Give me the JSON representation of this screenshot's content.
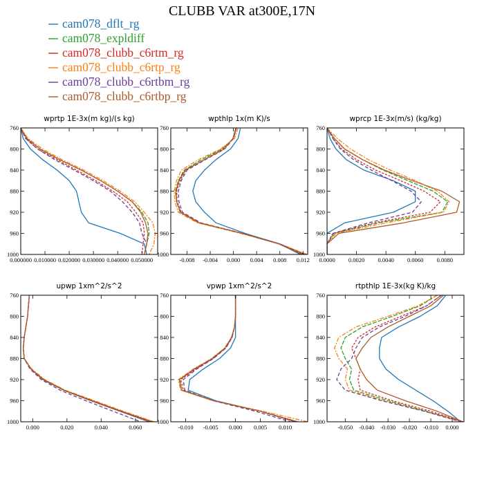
{
  "figure": {
    "title": "CLUBB VAR at300E,17N",
    "legend": [
      {
        "label": "cam078_dflt_rg",
        "color": "#1f77b4"
      },
      {
        "label": "cam078_expldiff",
        "color": "#2ca02c"
      },
      {
        "label": "cam078_clubb_c6rtm_rg",
        "color": "#d62728"
      },
      {
        "label": "cam078_clubb_c6rtp_rg",
        "color": "#ff7f0e"
      },
      {
        "label": "cam078_clubb_c6rtbm_rg",
        "color": "#6a3d9a"
      },
      {
        "label": "cam078_clubb_c6rtbp_rg",
        "color": "#b05a28"
      }
    ]
  },
  "chart_data": [
    {
      "type": "line",
      "title": "wprtp 1E-3x(m kg)/(s kg)",
      "xlim": [
        0.0,
        0.0565
      ],
      "ylim": [
        760,
        1000
      ],
      "y_inverted": true,
      "xticks": [
        0.0,
        0.01,
        0.02,
        0.03,
        0.04,
        0.05
      ],
      "xtick_labels": [
        "0.000000",
        "0.010000",
        "0.020000",
        "0.030000",
        "0.040000",
        "0.050000"
      ],
      "yticks": [
        760,
        800,
        840,
        880,
        920,
        960,
        1000
      ],
      "y": [
        760,
        780,
        800,
        820,
        840,
        860,
        880,
        900,
        920,
        940,
        960,
        980,
        1000
      ],
      "series": [
        {
          "name": "cam078_dflt_rg",
          "values": [
            0.0,
            0.001,
            0.004,
            0.009,
            0.015,
            0.02,
            0.023,
            0.024,
            0.025,
            0.028,
            0.041,
            0.051,
            0.052
          ]
        },
        {
          "name": "cam078_expldiff",
          "values": [
            0.0,
            0.0025,
            0.008,
            0.016,
            0.025,
            0.033,
            0.04,
            0.046,
            0.05,
            0.0525,
            0.053,
            0.052,
            0.051
          ]
        },
        {
          "name": "cam078_clubb_c6rtm_rg",
          "values": [
            0.0,
            0.002,
            0.007,
            0.015,
            0.023,
            0.031,
            0.038,
            0.044,
            0.0475,
            0.0505,
            0.051,
            0.0505,
            0.05
          ]
        },
        {
          "name": "cam078_clubb_c6rtp_rg",
          "values": [
            0.0,
            0.003,
            0.009,
            0.017,
            0.026,
            0.034,
            0.041,
            0.047,
            0.051,
            0.0545,
            0.0555,
            0.055,
            0.053
          ]
        },
        {
          "name": "cam078_clubb_c6rtbm_rg",
          "values": [
            0.0,
            0.002,
            0.007,
            0.014,
            0.022,
            0.03,
            0.037,
            0.042,
            0.046,
            0.049,
            0.05,
            0.052,
            0.051
          ]
        },
        {
          "name": "cam078_clubb_c6rtbp_rg",
          "values": [
            0.0,
            0.0025,
            0.008,
            0.016,
            0.025,
            0.033,
            0.04,
            0.046,
            0.0495,
            0.0515,
            0.0525,
            0.052,
            0.051
          ]
        }
      ]
    },
    {
      "type": "line",
      "title": "wpthlp 1x(m K)/s",
      "xlim": [
        -0.0108,
        0.0128
      ],
      "ylim": [
        760,
        1000
      ],
      "y_inverted": true,
      "xticks": [
        -0.008,
        -0.004,
        0.0,
        0.004,
        0.008,
        0.012
      ],
      "xtick_labels": [
        "-0.008",
        "-0.004",
        "0.000",
        "0.004",
        "0.008",
        "0.012"
      ],
      "yticks": [
        760,
        800,
        840,
        880,
        920,
        960,
        1000
      ],
      "y": [
        760,
        780,
        800,
        820,
        840,
        860,
        880,
        900,
        920,
        940,
        960,
        980,
        1000
      ],
      "series": [
        {
          "name": "cam078_dflt_rg",
          "values": [
            0.0012,
            0.0008,
            -0.0005,
            -0.003,
            -0.005,
            -0.0065,
            -0.007,
            -0.0065,
            -0.005,
            -0.003,
            0.002,
            0.008,
            0.0115
          ]
        },
        {
          "name": "cam078_expldiff",
          "values": [
            0.0005,
            0.0,
            -0.002,
            -0.0055,
            -0.0085,
            -0.0095,
            -0.01,
            -0.0098,
            -0.0092,
            -0.006,
            0.0015,
            0.008,
            0.0125
          ]
        },
        {
          "name": "cam078_clubb_c6rtm_rg",
          "values": [
            0.0005,
            0.0,
            -0.0018,
            -0.005,
            -0.0082,
            -0.0092,
            -0.0098,
            -0.0097,
            -0.009,
            -0.0058,
            0.0015,
            0.008,
            0.0122
          ]
        },
        {
          "name": "cam078_clubb_c6rtp_rg",
          "values": [
            0.0008,
            0.0002,
            -0.0022,
            -0.006,
            -0.009,
            -0.0098,
            -0.0102,
            -0.0101,
            -0.0095,
            -0.0062,
            0.0012,
            0.008,
            0.0127
          ]
        },
        {
          "name": "cam078_clubb_c6rtbm_rg",
          "values": [
            0.0005,
            0.0,
            -0.0015,
            -0.0048,
            -0.008,
            -0.009,
            -0.0095,
            -0.0094,
            -0.0088,
            -0.0056,
            0.0016,
            0.008,
            0.0122
          ]
        },
        {
          "name": "cam078_clubb_c6rtbp_rg",
          "values": [
            0.0004,
            -0.0001,
            -0.0016,
            -0.005,
            -0.0083,
            -0.0094,
            -0.0099,
            -0.0098,
            -0.0091,
            -0.0059,
            0.0015,
            0.0078,
            0.0118
          ]
        }
      ]
    },
    {
      "type": "line",
      "title": "wprcp 1E-3x(m/s) (kg/kg)",
      "xlim": [
        0.0,
        0.0093
      ],
      "ylim": [
        760,
        1000
      ],
      "y_inverted": true,
      "xticks": [
        0.0,
        0.002,
        0.004,
        0.006,
        0.008
      ],
      "xtick_labels": [
        "0.0000",
        "0.0020",
        "0.0040",
        "0.0060",
        "0.0080"
      ],
      "yticks": [
        760,
        800,
        840,
        880,
        920,
        960,
        1000
      ],
      "y": [
        760,
        780,
        800,
        820,
        840,
        860,
        880,
        900,
        920,
        940,
        960,
        980,
        1000
      ],
      "series": [
        {
          "name": "cam078_dflt_rg",
          "values": [
            0.0,
            0.0002,
            0.0006,
            0.0013,
            0.0025,
            0.0045,
            0.006,
            0.006,
            0.0045,
            0.0012,
            0.0,
            0.0,
            0.0
          ]
        },
        {
          "name": "cam078_expldiff",
          "values": [
            0.0,
            0.0005,
            0.0012,
            0.0024,
            0.0038,
            0.0055,
            0.0072,
            0.0082,
            0.0078,
            0.0035,
            0.0005,
            0.0,
            0.0
          ]
        },
        {
          "name": "cam078_clubb_c6rtm_rg",
          "values": [
            0.0,
            0.0004,
            0.001,
            0.002,
            0.0033,
            0.005,
            0.0066,
            0.0077,
            0.007,
            0.0032,
            0.0004,
            0.0,
            0.0
          ]
        },
        {
          "name": "cam078_clubb_c6rtp_rg",
          "values": [
            0.0,
            0.0007,
            0.0016,
            0.0028,
            0.0043,
            0.006,
            0.0075,
            0.0083,
            0.0079,
            0.004,
            0.0006,
            0.0,
            0.0
          ]
        },
        {
          "name": "cam078_clubb_c6rtbm_rg",
          "values": [
            0.0,
            0.0004,
            0.0009,
            0.0018,
            0.003,
            0.0044,
            0.0057,
            0.0064,
            0.0058,
            0.0028,
            0.0004,
            0.0,
            0.0
          ]
        },
        {
          "name": "cam078_clubb_c6rtbp_rg",
          "values": [
            0.0,
            0.0005,
            0.0012,
            0.0024,
            0.0039,
            0.0058,
            0.0078,
            0.009,
            0.0088,
            0.0052,
            0.0008,
            0.0,
            0.0
          ]
        }
      ]
    },
    {
      "type": "line",
      "title": "upwp 1xm^2/s^2",
      "xlim": [
        -0.007,
        0.073
      ],
      "ylim": [
        760,
        1000
      ],
      "y_inverted": true,
      "xticks": [
        0.0,
        0.02,
        0.04,
        0.06
      ],
      "xtick_labels": [
        "0.000",
        "0.020",
        "0.040",
        "0.060"
      ],
      "yticks": [
        760,
        800,
        840,
        880,
        920,
        960,
        1000
      ],
      "y": [
        760,
        780,
        800,
        820,
        840,
        860,
        880,
        900,
        920,
        940,
        960,
        980,
        1000
      ],
      "series": [
        {
          "name": "cam078_dflt_rg",
          "values": [
            -0.002,
            -0.0025,
            -0.003,
            -0.004,
            -0.005,
            -0.0055,
            -0.005,
            -0.001,
            0.006,
            0.018,
            0.034,
            0.051,
            0.068
          ]
        },
        {
          "name": "cam078_expldiff",
          "values": [
            -0.002,
            -0.0025,
            -0.003,
            -0.004,
            -0.005,
            -0.0055,
            -0.005,
            -0.001,
            0.006,
            0.018,
            0.034,
            0.052,
            0.069
          ]
        },
        {
          "name": "cam078_clubb_c6rtm_rg",
          "values": [
            -0.002,
            -0.0025,
            -0.003,
            -0.004,
            -0.005,
            -0.0055,
            -0.005,
            -0.001,
            0.006,
            0.018,
            0.034,
            0.051,
            0.068
          ]
        },
        {
          "name": "cam078_clubb_c6rtp_rg",
          "values": [
            -0.002,
            -0.0025,
            -0.003,
            -0.004,
            -0.005,
            -0.0055,
            -0.005,
            -0.0005,
            0.007,
            0.019,
            0.036,
            0.053,
            0.071
          ]
        },
        {
          "name": "cam078_clubb_c6rtbm_rg",
          "values": [
            -0.002,
            -0.0025,
            -0.003,
            -0.004,
            -0.005,
            -0.0055,
            -0.005,
            -0.0015,
            0.005,
            0.016,
            0.031,
            0.047,
            0.063
          ]
        },
        {
          "name": "cam078_clubb_c6rtbp_rg",
          "values": [
            -0.002,
            -0.0025,
            -0.003,
            -0.004,
            -0.005,
            -0.0055,
            -0.005,
            -0.001,
            0.0065,
            0.0185,
            0.035,
            0.052,
            0.07
          ]
        }
      ]
    },
    {
      "type": "line",
      "title": "vpwp 1xm^2/s^2",
      "xlim": [
        -0.013,
        0.0145
      ],
      "ylim": [
        760,
        1000
      ],
      "y_inverted": true,
      "xticks": [
        -0.01,
        -0.005,
        0.0,
        0.005,
        0.01
      ],
      "xtick_labels": [
        "-0.010",
        "-0.005",
        "0.000",
        "0.005",
        "0.010"
      ],
      "yticks": [
        760,
        800,
        840,
        880,
        920,
        960,
        1000
      ],
      "y": [
        760,
        780,
        800,
        820,
        840,
        860,
        880,
        900,
        920,
        940,
        960,
        980,
        1000
      ],
      "series": [
        {
          "name": "cam078_dflt_rg",
          "values": [
            0.0,
            0.0,
            0.0,
            0.0,
            0.0,
            -0.001,
            -0.0032,
            -0.0065,
            -0.0092,
            -0.0095,
            -0.004,
            0.005,
            0.012
          ]
        },
        {
          "name": "cam078_expldiff",
          "values": [
            0.0,
            0.0,
            0.0,
            -0.0002,
            -0.0007,
            -0.002,
            -0.0045,
            -0.0082,
            -0.0112,
            -0.0108,
            -0.0045,
            0.005,
            0.0125
          ]
        },
        {
          "name": "cam078_clubb_c6rtm_rg",
          "values": [
            0.0,
            0.0,
            0.0,
            -0.0002,
            -0.0007,
            -0.002,
            -0.0045,
            -0.008,
            -0.011,
            -0.0105,
            -0.0045,
            0.005,
            0.012
          ]
        },
        {
          "name": "cam078_clubb_c6rtp_rg",
          "values": [
            0.0,
            0.0,
            0.0,
            -0.0002,
            -0.0008,
            -0.0022,
            -0.0048,
            -0.0085,
            -0.0115,
            -0.011,
            -0.0045,
            0.0055,
            0.0145
          ]
        },
        {
          "name": "cam078_clubb_c6rtbm_rg",
          "values": [
            0.0,
            0.0,
            0.0,
            -0.0002,
            -0.0007,
            -0.0019,
            -0.0044,
            -0.0078,
            -0.0105,
            -0.0102,
            -0.0045,
            0.004,
            0.011
          ]
        },
        {
          "name": "cam078_clubb_c6rtbp_rg",
          "values": [
            0.0,
            0.0,
            0.0,
            -0.0002,
            -0.0008,
            -0.0021,
            -0.0047,
            -0.0083,
            -0.0113,
            -0.0108,
            -0.0044,
            0.005,
            0.0125
          ]
        }
      ]
    },
    {
      "type": "line",
      "title": "rtpthlp 1E-3x(kg K)/kg",
      "xlim": [
        -0.0585,
        0.0055
      ],
      "ylim": [
        760,
        1000
      ],
      "y_inverted": true,
      "xticks": [
        -0.05,
        -0.04,
        -0.03,
        -0.02,
        -0.01,
        0.0
      ],
      "xtick_labels": [
        "-0.050",
        "-0.040",
        "-0.030",
        "-0.020",
        "-0.010",
        "0.000"
      ],
      "yticks": [
        760,
        800,
        840,
        880,
        920,
        960,
        1000
      ],
      "y": [
        760,
        780,
        800,
        820,
        840,
        860,
        880,
        900,
        920,
        940,
        960,
        980,
        1000
      ],
      "series": [
        {
          "name": "cam078_dflt_rg",
          "values": [
            -0.003,
            -0.007,
            -0.015,
            -0.025,
            -0.033,
            -0.034,
            -0.034,
            -0.031,
            -0.025,
            -0.017,
            -0.009,
            -0.002,
            0.004
          ]
        },
        {
          "name": "cam078_expldiff",
          "values": [
            -0.007,
            -0.015,
            -0.028,
            -0.042,
            -0.05,
            -0.052,
            -0.05,
            -0.047,
            -0.048,
            -0.046,
            -0.03,
            -0.012,
            0.005
          ]
        },
        {
          "name": "cam078_clubb_c6rtm_rg",
          "values": [
            -0.005,
            -0.012,
            -0.024,
            -0.036,
            -0.044,
            -0.047,
            -0.045,
            -0.043,
            -0.044,
            -0.043,
            -0.028,
            -0.01,
            0.005
          ]
        },
        {
          "name": "cam078_clubb_c6rtp_rg",
          "values": [
            -0.007,
            -0.016,
            -0.03,
            -0.045,
            -0.053,
            -0.055,
            -0.053,
            -0.049,
            -0.05,
            -0.048,
            -0.032,
            -0.013,
            0.005
          ]
        },
        {
          "name": "cam078_clubb_c6rtbm_rg",
          "values": [
            -0.005,
            -0.012,
            -0.022,
            -0.034,
            -0.042,
            -0.045,
            -0.047,
            -0.052,
            -0.054,
            -0.05,
            -0.033,
            -0.013,
            0.004
          ]
        },
        {
          "name": "cam078_clubb_c6rtbp_rg",
          "values": [
            -0.004,
            -0.01,
            -0.02,
            -0.03,
            -0.038,
            -0.042,
            -0.045,
            -0.043,
            -0.04,
            -0.035,
            -0.022,
            -0.007,
            0.005
          ]
        }
      ]
    }
  ]
}
